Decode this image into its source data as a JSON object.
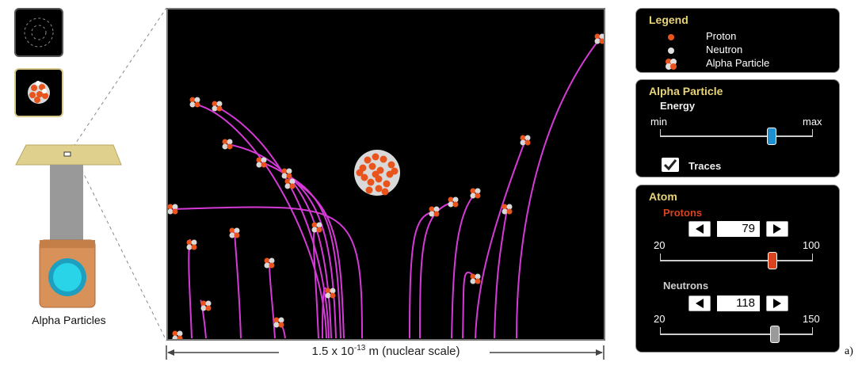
{
  "gun": {
    "label": "Alpha Particles"
  },
  "view": {
    "scale_prefix": "1.5 x 10",
    "scale_exp": "-13",
    "scale_suffix": " m (nuclear scale)"
  },
  "legend": {
    "title": "Legend",
    "proton": "Proton",
    "neutron": "Neutron",
    "alpha": "Alpha Particle"
  },
  "alpha_panel": {
    "title": "Alpha Particle",
    "energy_label": "Energy",
    "min": "min",
    "max": "max",
    "energy_level": 0.73,
    "traces_label": "Traces",
    "traces_checked": true
  },
  "atom_panel": {
    "title": "Atom",
    "protons_label": "Protons",
    "protons_value": "79",
    "protons_min": "20",
    "protons_max": "100",
    "neutrons_label": "Neutrons",
    "neutrons_value": "118",
    "neutrons_min": "20",
    "neutrons_max": "150"
  },
  "figure_label": "a)",
  "colors": {
    "proton": "#e8541c",
    "neutron": "#d9d9d9",
    "trace": "#d63ad6",
    "panel_title": "#e8d478",
    "protons_label": "#d9431e",
    "neutrons_label": "#cfcfcf",
    "energy_thumb": "#1e8fcf",
    "protons_thumb": "#d9431e",
    "neutrons_thumb": "#9a9a9a"
  }
}
